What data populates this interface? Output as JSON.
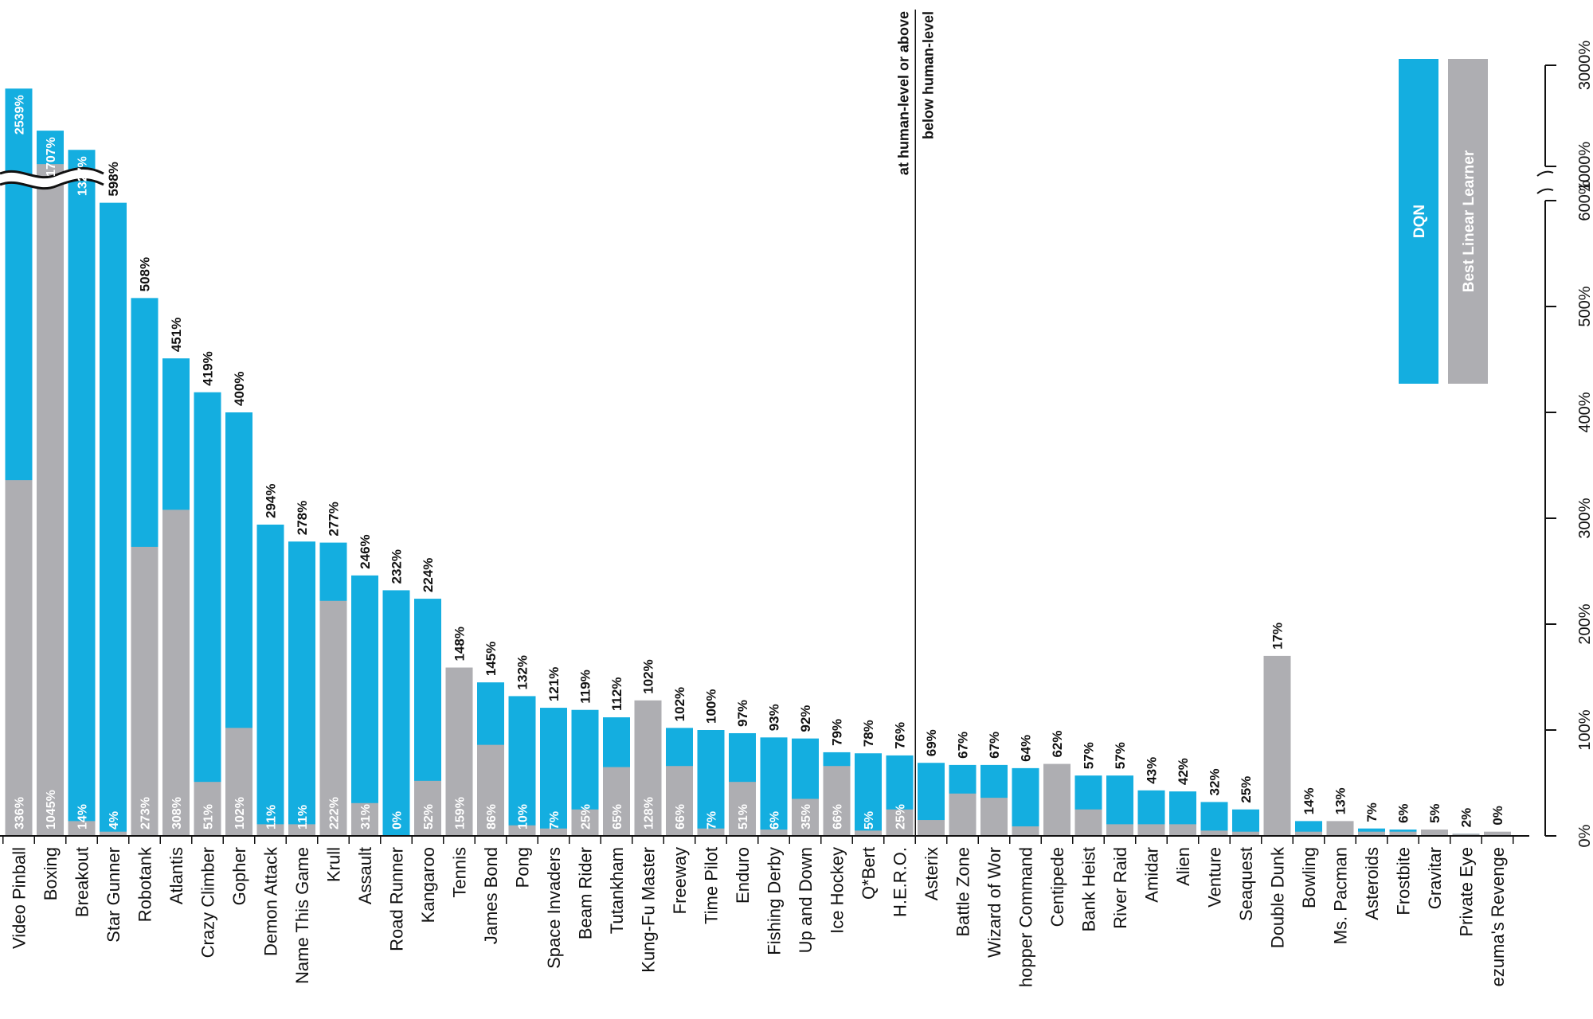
{
  "chart_data": {
    "type": "bar",
    "title": "",
    "xlabel": "",
    "ylabel": "",
    "orientation": "rotated-90",
    "axis": {
      "ticks": [
        "0%",
        "100%",
        "200%",
        "300%",
        "400%",
        "500%",
        "600%",
        "1000%",
        "3000%"
      ],
      "ylim": [
        0,
        3000
      ],
      "broken_axis": true,
      "break_range": [
        600,
        1000
      ]
    },
    "legend": {
      "placement": "top-right",
      "entries": [
        "DQN",
        "Best Linear Learner"
      ]
    },
    "divider": {
      "above_label": "at human-level or above",
      "below_label": "below human-level"
    },
    "colors": {
      "dqn": "#14aee0",
      "linear": "#aeaeb2",
      "text": "#111111"
    },
    "categories": [
      "Video Pinball",
      "Boxing",
      "Breakout",
      "Star Gunner",
      "Robotank",
      "Atlantis",
      "Crazy Climber",
      "Gopher",
      "Demon Attack",
      "Name This Game",
      "Krull",
      "Assault",
      "Road Runner",
      "Kangaroo",
      "Tennis",
      "James Bond",
      "Pong",
      "Space Invaders",
      "Beam Rider",
      "Tutankham",
      "Kung-Fu Master",
      "Freeway",
      "Time Pilot",
      "Enduro",
      "Fishing Derby",
      "Up and Down",
      "Ice Hockey",
      "Q*Bert",
      "H.E.R.O.",
      "Asterix",
      "Battle Zone",
      "Wizard of Wor",
      "Chopper Command",
      "Centipede",
      "Bank Heist",
      "River Raid",
      "Amidar",
      "Alien",
      "Venture",
      "Seaquest",
      "Double Dunk",
      "Bowling",
      "Ms. Pacman",
      "Asteroids",
      "Frostbite",
      "Gravitar",
      "Private Eye",
      "Montezuma's Revenge"
    ],
    "category_labels": [
      "Video Pinball",
      "Boxing",
      "Breakout",
      "Star Gunner",
      "Robotank",
      "Atlantis",
      "Crazy Climber",
      "Gopher",
      "Demon Attack",
      "Name This Game",
      "Krull",
      "Assault",
      "Road Runner",
      "Kangaroo",
      "Tennis",
      "James Bond",
      "Pong",
      "Space Invaders",
      "Beam Rider",
      "Tutankham",
      "Kung-Fu Master",
      "Freeway",
      "Time Pilot",
      "Enduro",
      "Fishing Derby",
      "Up and Down",
      "Ice Hockey",
      "Q*Bert",
      "H.E.R.O.",
      "Asterix",
      "Battle Zone",
      "Wizard of Wor",
      "hopper Command",
      "Centipede",
      "Bank Heist",
      "River Raid",
      "Amidar",
      "Alien",
      "Venture",
      "Seaquest",
      "Double Dunk",
      "Bowling",
      "Ms. Pacman",
      "Asteroids",
      "Frostbite",
      "Gravitar",
      "Private Eye",
      "ezuma's Revenge"
    ],
    "series": [
      {
        "name": "DQN",
        "values": [
          2539,
          1707,
          1327,
          598,
          508,
          451,
          419,
          400,
          294,
          278,
          277,
          246,
          232,
          224,
          148,
          145,
          132,
          121,
          119,
          112,
          102,
          102,
          100,
          97,
          93,
          92,
          79,
          78,
          76,
          69,
          67,
          67,
          64,
          62,
          57,
          57,
          43,
          42,
          32,
          25,
          17,
          14,
          13,
          7,
          6,
          5,
          2,
          0
        ]
      },
      {
        "name": "Best Linear Learner",
        "values": [
          336,
          1045,
          14,
          4,
          273,
          308,
          51,
          102,
          11,
          11,
          222,
          31,
          0,
          52,
          159,
          86,
          10,
          7,
          25,
          65,
          128,
          66,
          7,
          51,
          6,
          35,
          66,
          5,
          25,
          15,
          40,
          36,
          9,
          68,
          25,
          11,
          11,
          11,
          5,
          4,
          170,
          4,
          14,
          4,
          4,
          6,
          2,
          4
        ]
      }
    ],
    "value_labels": [
      "2539%",
      "1707%",
      "1327%",
      "598%",
      "508%",
      "451%",
      "419%",
      "400%",
      "294%",
      "278%",
      "277%",
      "246%",
      "232%",
      "224%",
      "148%",
      "145%",
      "132%",
      "121%",
      "119%",
      "112%",
      "102%",
      "102%",
      "100%",
      "97%",
      "93%",
      "92%",
      "79%",
      "78%",
      "76%",
      "69%",
      "67%",
      "67%",
      "64%",
      "62%",
      "57%",
      "57%",
      "43%",
      "42%",
      "32%",
      "25%",
      "17%",
      "14%",
      "13%",
      "7%",
      "6%",
      "5%",
      "2%",
      "0%"
    ],
    "linear_labels": [
      "336%",
      "1045%",
      "14%",
      "4%",
      "273%",
      "308%",
      "51%",
      "102%",
      "11%",
      "11%",
      "222%",
      "31%",
      "0%",
      "52%",
      "159%",
      "86%",
      "10%",
      "7%",
      "25%",
      "65%",
      "128%",
      "66%",
      "7%",
      "51%",
      "6%",
      "35%",
      "66%",
      "5%",
      "25%"
    ]
  }
}
